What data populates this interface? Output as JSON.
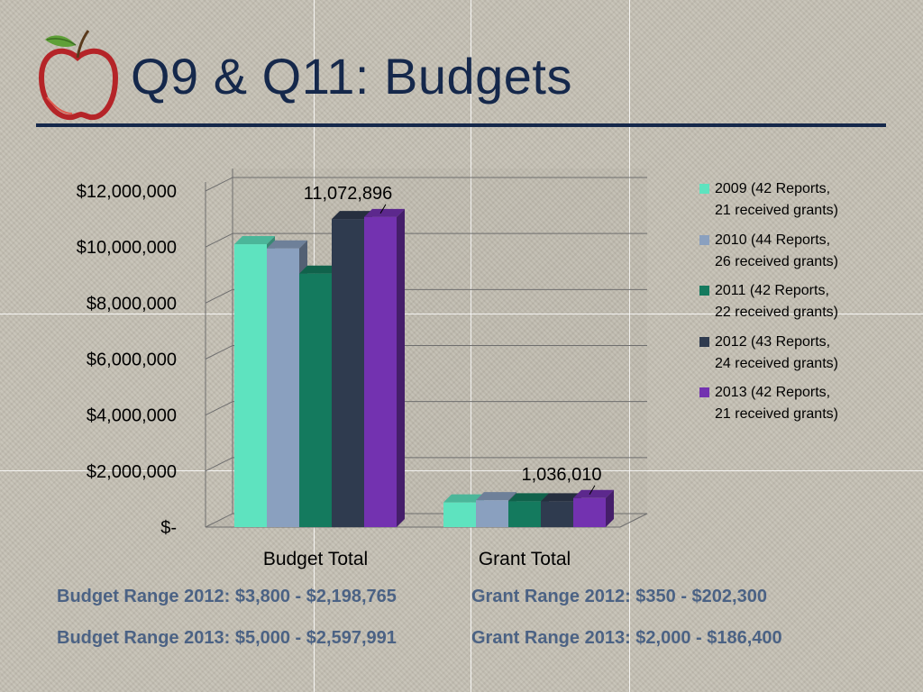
{
  "title": "Q9 & Q11:  Budgets",
  "colors": {
    "title": "#15284b",
    "range_text": "#4b6284",
    "s2009": "#5ee3bf",
    "s2010": "#8aa0bf",
    "s2011": "#147a5e",
    "s2012": "#2f3b4f",
    "s2013": "#7332b0"
  },
  "icons": {
    "logo": "apple-icon"
  },
  "chart_data": {
    "type": "bar",
    "categories": [
      "Budget Total",
      "Grant Total"
    ],
    "series": [
      {
        "name": "2009 (42 Reports, 21 received grants)",
        "name_line1": "2009 (42 Reports,",
        "name_line2": "21 received grants)",
        "values": [
          10100000,
          880000
        ]
      },
      {
        "name": "2010 (44 Reports, 26 received grants)",
        "name_line1": "2010 (44 Reports,",
        "name_line2": "26 received grants)",
        "values": [
          9950000,
          960000
        ]
      },
      {
        "name": "2011 (42 Reports, 22 received grants)",
        "name_line1": "2011 (42 Reports,",
        "name_line2": "22 received grants)",
        "values": [
          9050000,
          920000
        ]
      },
      {
        "name": "2012 (43 Reports, 24 received grants)",
        "name_line1": "2012 (43 Reports,",
        "name_line2": "24 received grants)",
        "values": [
          11000000,
          920000
        ]
      },
      {
        "name": "2013 (42 Reports, 21 received grants)",
        "name_line1": "2013 (42 Reports,",
        "name_line2": "21 received grants)",
        "values": [
          11072896,
          1036010
        ]
      }
    ],
    "data_labels": [
      "11,072,896",
      "1,036,010"
    ],
    "y_ticks": [
      "$-",
      "$2,000,000",
      "$4,000,000",
      "$6,000,000",
      "$8,000,000",
      "$10,000,000",
      "$12,000,000"
    ],
    "ylim": [
      0,
      12000000
    ],
    "grid": true,
    "legend_position": "right",
    "style": "3d-clustered-bar"
  },
  "footer": {
    "budget_range_2012": "Budget Range 2012: $3,800 - $2,198,765",
    "grant_range_2012": "Grant Range 2012: $350 - $202,300",
    "budget_range_2013": "Budget Range 2013: $5,000 - $2,597,991",
    "grant_range_2013": "Grant Range 2013: $2,000 - $186,400"
  }
}
